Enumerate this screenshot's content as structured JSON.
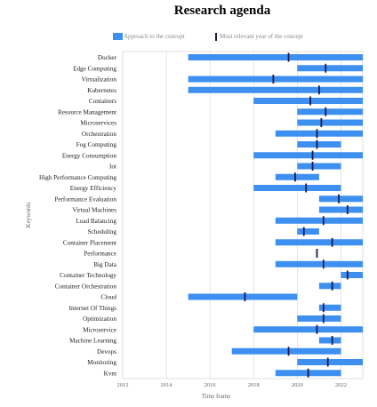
{
  "chart_data": {
    "type": "gantt",
    "title": "Research agenda",
    "xlabel": "Time frame",
    "ylabel": "Keywords",
    "xlim": [
      2012,
      2023
    ],
    "x_ticks": [
      "2012",
      "2014",
      "2016",
      "2018",
      "2020",
      "2022"
    ],
    "legend": {
      "placement": "top",
      "bar_label": "Approach to the concept",
      "marker_label": "Most relevant year of the concept"
    },
    "colors": {
      "bar": "#3d8ff0",
      "marker": "#1a1a4a",
      "grid": "#d9d9d9"
    },
    "grid": true,
    "rows": [
      {
        "label": "Docker",
        "start": 2015,
        "end": 2023,
        "relevant": 2019.6
      },
      {
        "label": "Edge Computing",
        "start": 2020,
        "end": 2023,
        "relevant": 2021.3
      },
      {
        "label": "Virtualization",
        "start": 2015,
        "end": 2023,
        "relevant": 2018.9
      },
      {
        "label": "Kubernetes",
        "start": 2015,
        "end": 2023,
        "relevant": 2021.0
      },
      {
        "label": "Containers",
        "start": 2018,
        "end": 2023,
        "relevant": 2020.6
      },
      {
        "label": "Resource Management",
        "start": 2020,
        "end": 2023,
        "relevant": 2021.3
      },
      {
        "label": "Microservices",
        "start": 2020,
        "end": 2023,
        "relevant": 2021.1
      },
      {
        "label": "Orchestration",
        "start": 2019,
        "end": 2023,
        "relevant": 2020.9
      },
      {
        "label": "Fog Computing",
        "start": 2020,
        "end": 2022,
        "relevant": 2020.9
      },
      {
        "label": "Energy Consumption",
        "start": 2018,
        "end": 2023,
        "relevant": 2020.7
      },
      {
        "label": "Iot",
        "start": 2020,
        "end": 2022,
        "relevant": 2020.7
      },
      {
        "label": "High Performance Computing",
        "start": 2019,
        "end": 2021,
        "relevant": 2019.9
      },
      {
        "label": "Energy Efficiency",
        "start": 2018,
        "end": 2022,
        "relevant": 2020.4
      },
      {
        "label": "Performance Evaluation",
        "start": 2021,
        "end": 2023,
        "relevant": 2021.9
      },
      {
        "label": "Virtual Machines",
        "start": 2021,
        "end": 2023,
        "relevant": 2022.3
      },
      {
        "label": "Load Balancing",
        "start": 2019,
        "end": 2023,
        "relevant": 2021.2
      },
      {
        "label": "Scheduling",
        "start": 2020,
        "end": 2021,
        "relevant": 2020.3
      },
      {
        "label": "Container Placement",
        "start": 2019,
        "end": 2023,
        "relevant": 2021.6
      },
      {
        "label": "Performance",
        "start": null,
        "end": null,
        "relevant": 2020.9
      },
      {
        "label": "Big Data",
        "start": 2019,
        "end": 2023,
        "relevant": 2021.2
      },
      {
        "label": "Container Technology",
        "start": 2022,
        "end": 2023,
        "relevant": 2022.3
      },
      {
        "label": "Container Orchestration",
        "start": 2021,
        "end": 2022,
        "relevant": 2021.6
      },
      {
        "label": "Cloud",
        "start": 2015,
        "end": 2020,
        "relevant": 2017.6
      },
      {
        "label": "Internet Of Things",
        "start": 2021,
        "end": 2022,
        "relevant": 2021.2
      },
      {
        "label": "Optimization",
        "start": 2020,
        "end": 2022,
        "relevant": 2021.2
      },
      {
        "label": "Microservice",
        "start": 2018,
        "end": 2023,
        "relevant": 2020.9
      },
      {
        "label": "Machine Learning",
        "start": 2021,
        "end": 2022,
        "relevant": 2021.6
      },
      {
        "label": "Devops",
        "start": 2017,
        "end": 2022,
        "relevant": 2019.6
      },
      {
        "label": "Monitoring",
        "start": 2020,
        "end": 2023,
        "relevant": 2021.4
      },
      {
        "label": "Kvm",
        "start": 2019,
        "end": 2022,
        "relevant": 2020.5
      }
    ]
  }
}
